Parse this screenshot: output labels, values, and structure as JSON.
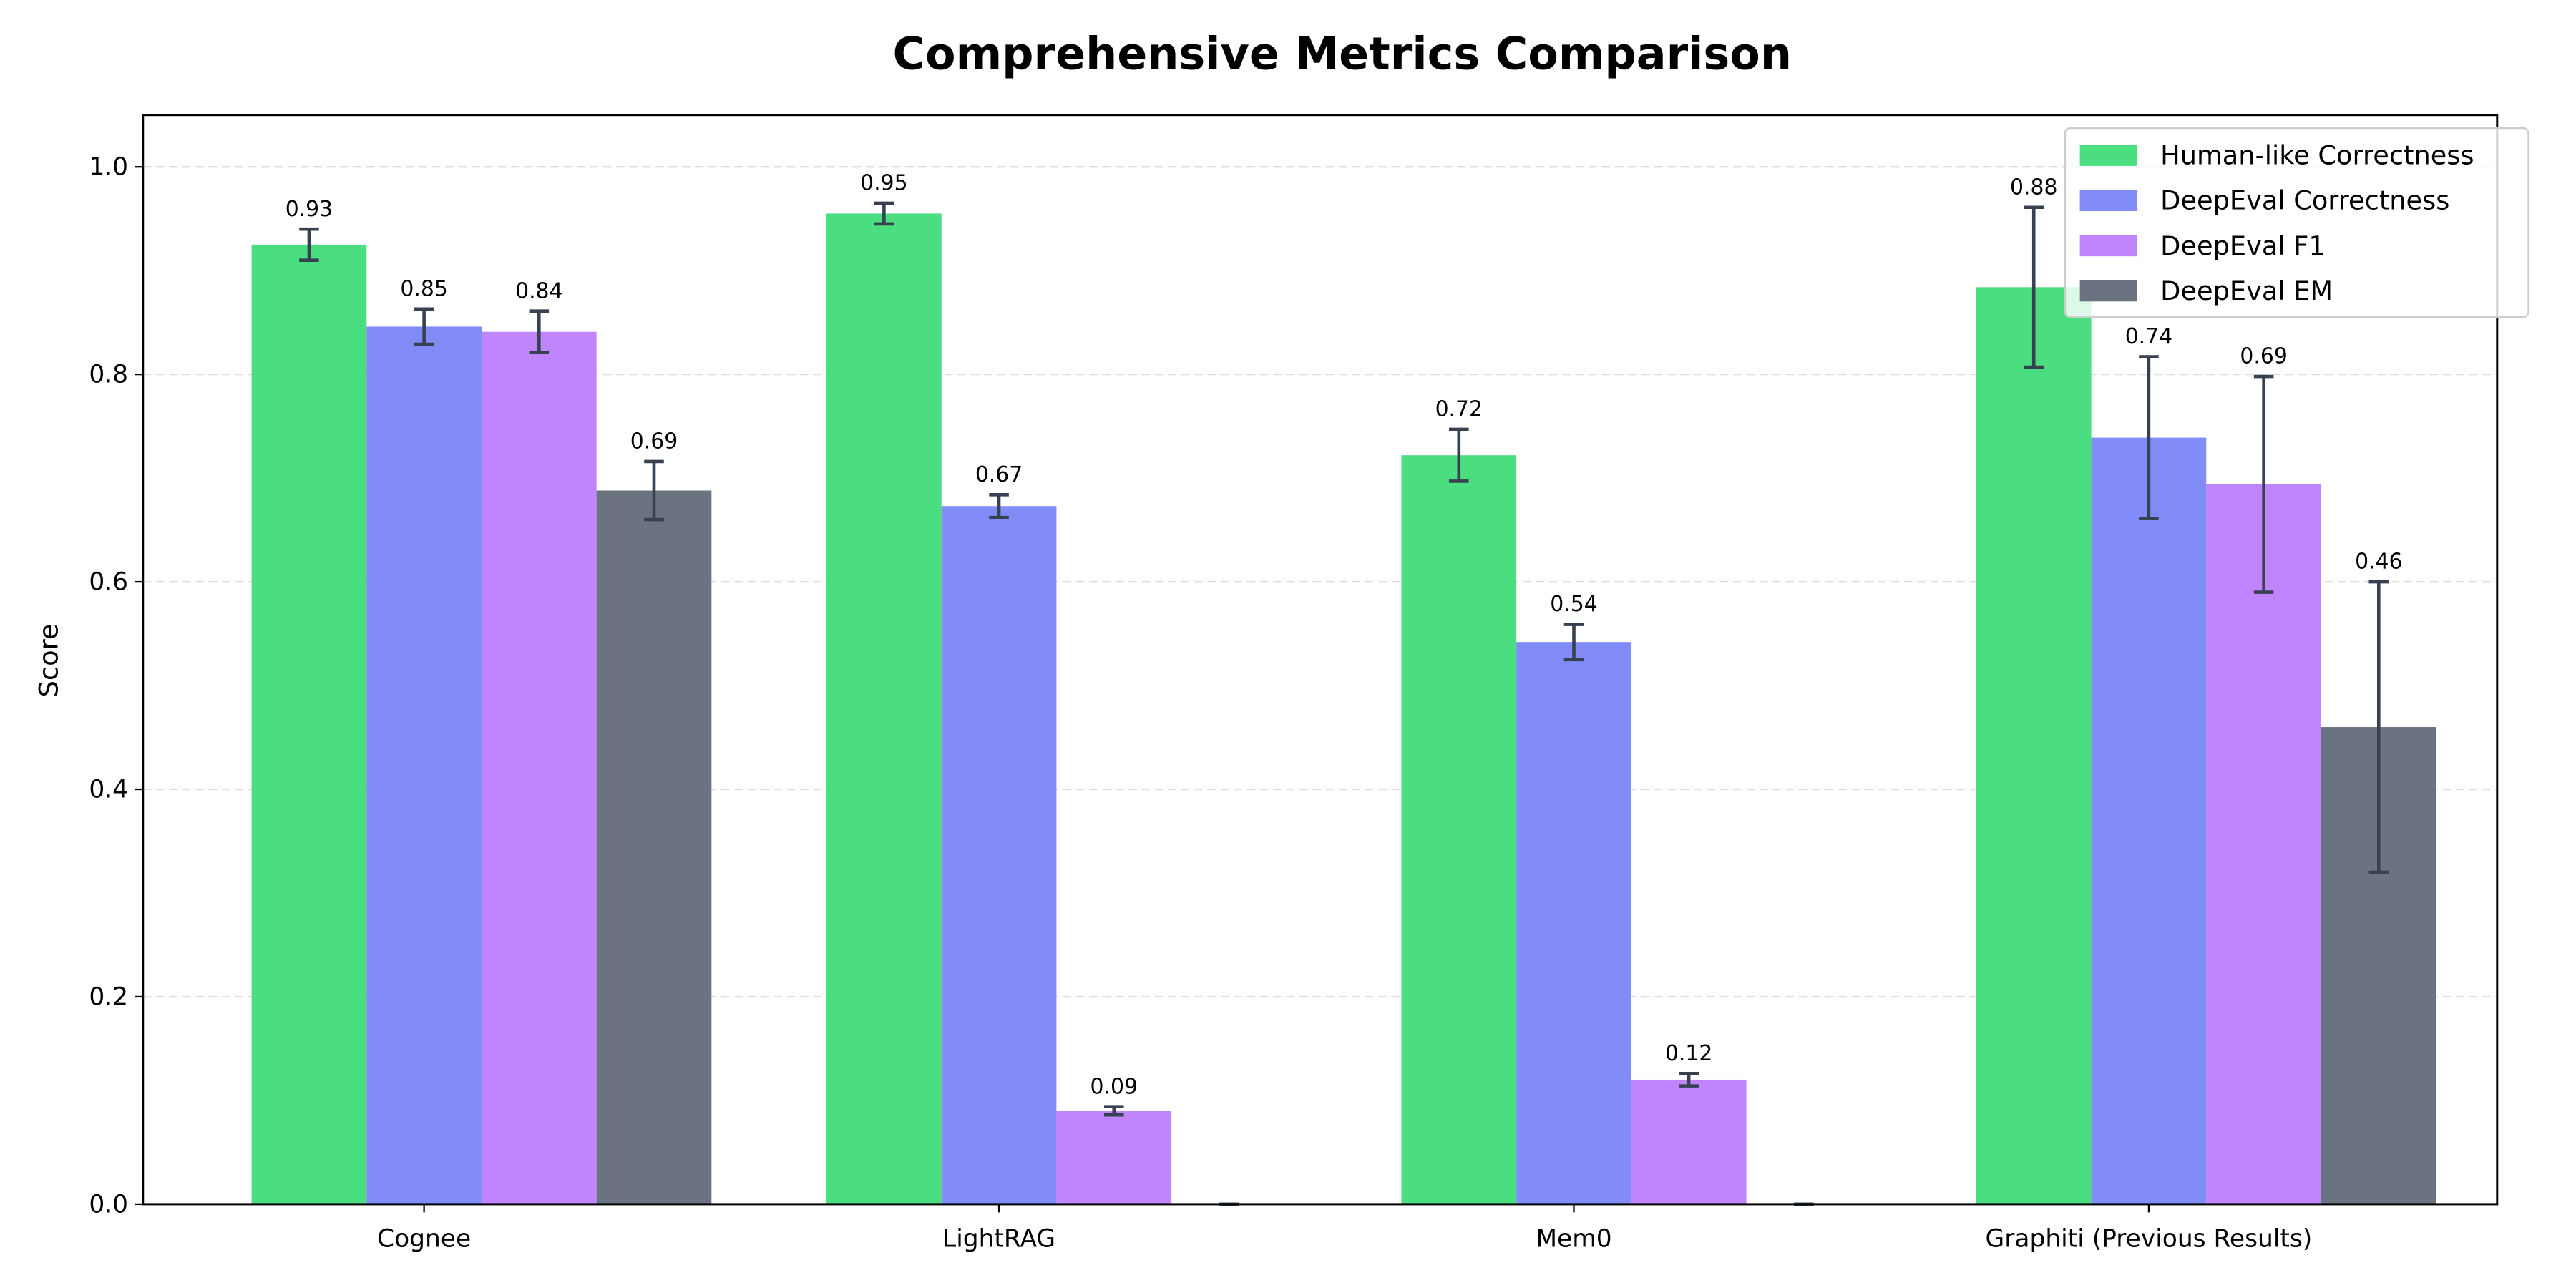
{
  "chart_data": {
    "type": "bar",
    "title": "Comprehensive Metrics Comparison",
    "xlabel": "",
    "ylabel": "Score",
    "ylim": [
      0,
      1.05
    ],
    "yticks": [
      "0.0",
      "0.2",
      "0.4",
      "0.6",
      "0.8",
      "1.0"
    ],
    "grid": "y dashed",
    "legend_position": "top-right",
    "categories": [
      "Cognee",
      "LightRAG",
      "Mem0",
      "Graphiti (Previous Results)"
    ],
    "series": [
      {
        "name": "Human-like Correctness",
        "color": "#4ade80",
        "values": [
          0.925,
          0.955,
          0.722,
          0.884
        ],
        "errors": [
          0.015,
          0.01,
          0.025,
          0.077
        ],
        "labels": [
          "0.93",
          "0.95",
          "0.72",
          "0.88"
        ]
      },
      {
        "name": "DeepEval Correctness",
        "color": "#818cf8",
        "values": [
          0.846,
          0.673,
          0.542,
          0.739
        ],
        "errors": [
          0.017,
          0.011,
          0.017,
          0.078
        ],
        "labels": [
          "0.85",
          "0.67",
          "0.54",
          "0.74"
        ]
      },
      {
        "name": "DeepEval F1",
        "color": "#c084fc",
        "values": [
          0.841,
          0.09,
          0.12,
          0.694
        ],
        "errors": [
          0.02,
          0.004,
          0.006,
          0.104
        ],
        "labels": [
          "0.84",
          "0.09",
          "0.12",
          "0.69"
        ]
      },
      {
        "name": "DeepEval EM",
        "color": "#6b7280",
        "values": [
          0.688,
          0.0,
          0.0,
          0.46
        ],
        "errors": [
          0.028,
          0.0,
          0.0,
          0.14
        ],
        "labels": [
          "0.69",
          "",
          "",
          "0.46"
        ]
      }
    ],
    "error_bar_color": "#374151"
  }
}
